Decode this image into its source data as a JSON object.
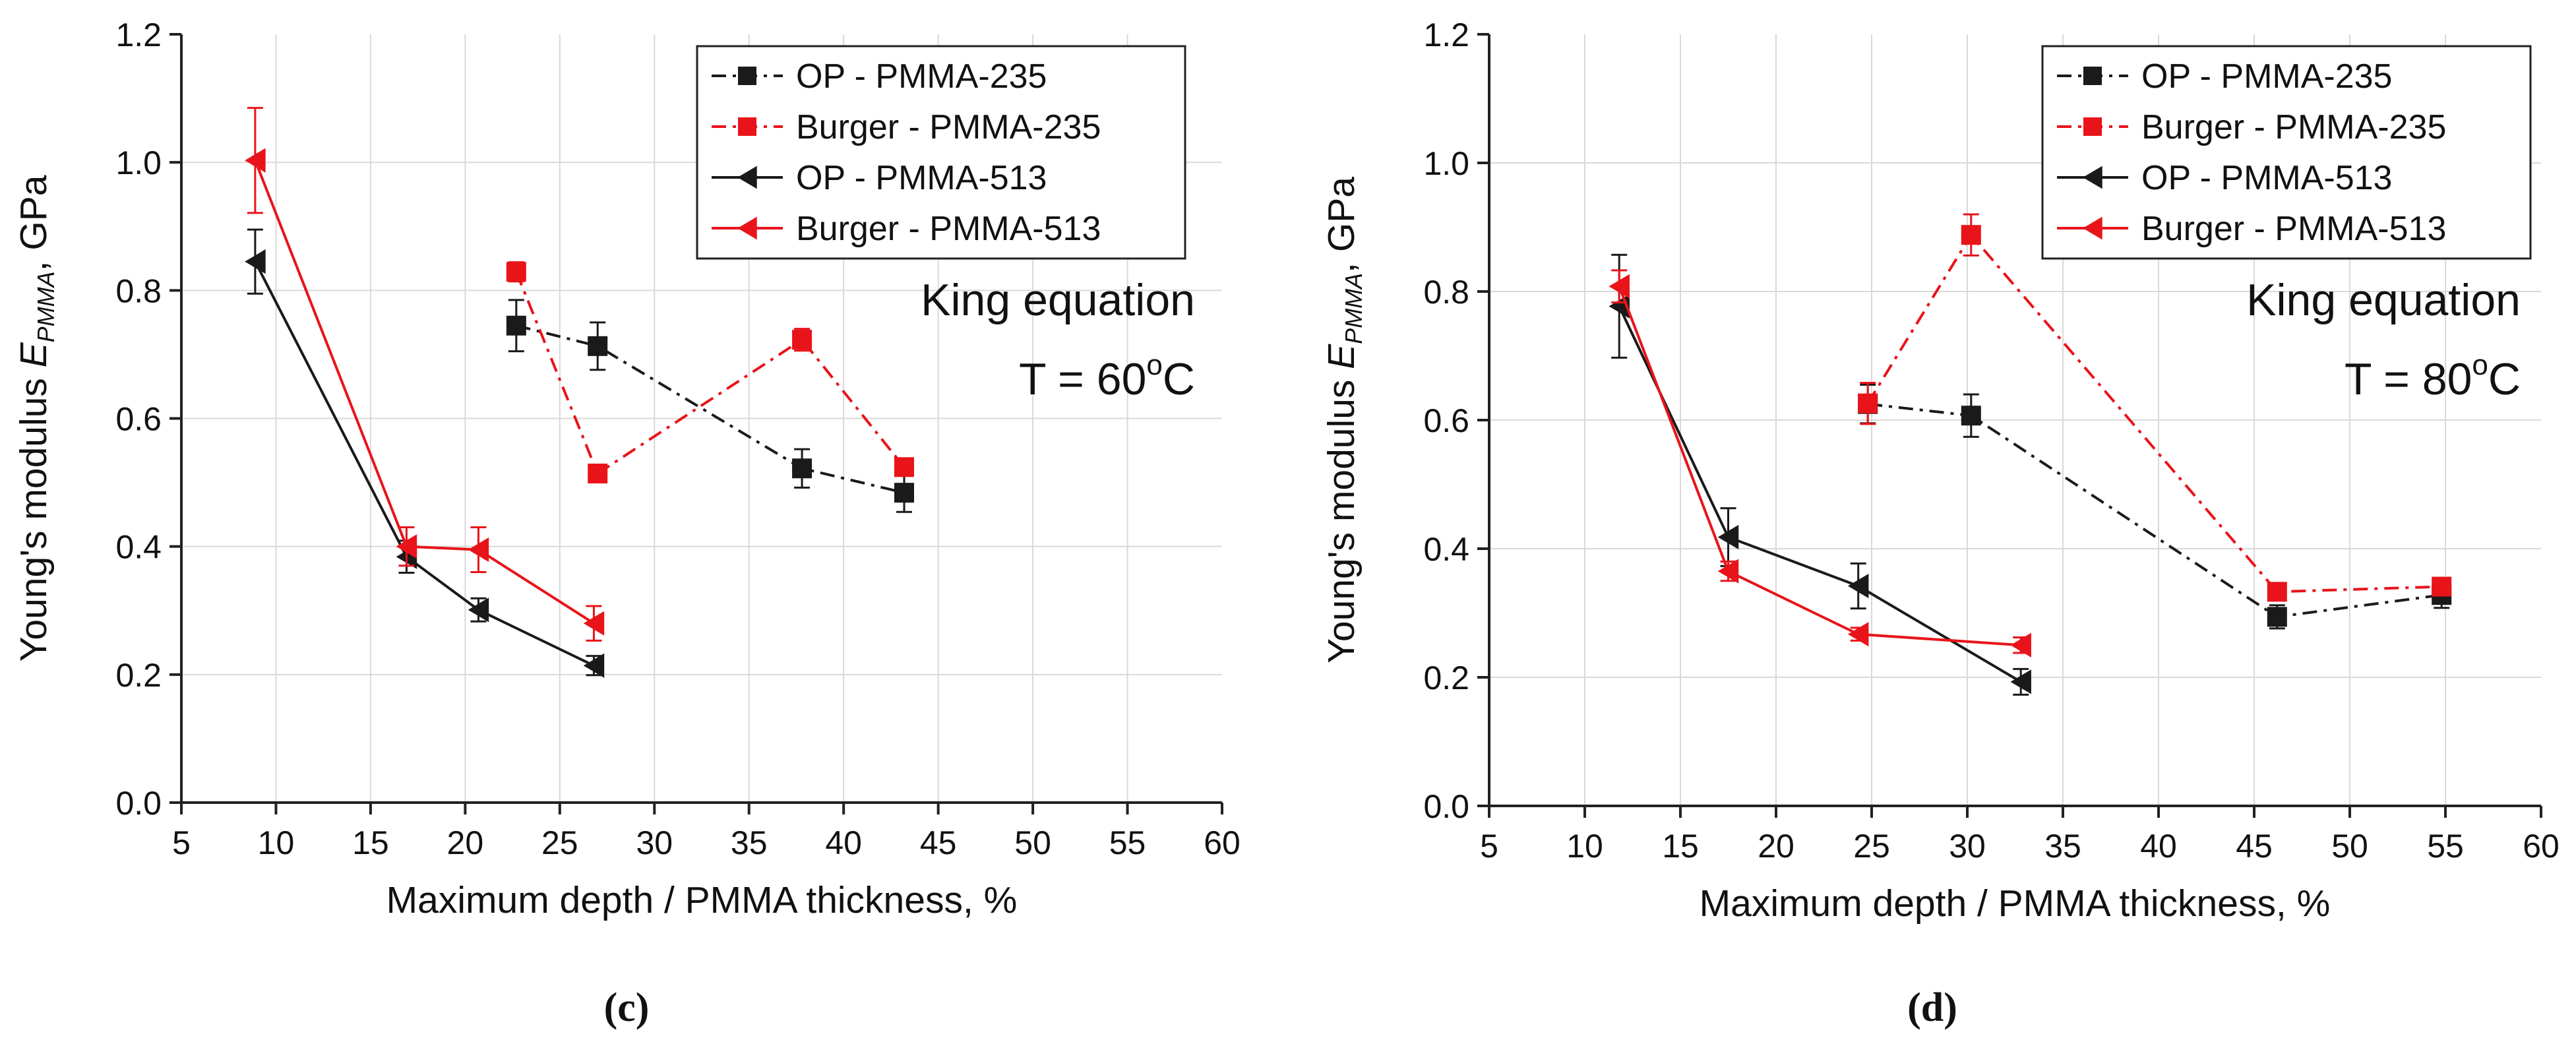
{
  "colors": {
    "black": "#1a1a1a",
    "red": "#e8141a",
    "grid": "#d9d9d9",
    "axis": "#222222"
  },
  "chart_data": [
    {
      "type": "line",
      "panel_label": "(c)",
      "xlabel": "Maximum depth / PMMA thickness, %",
      "ylabel_prefix": "Young's modulus ",
      "ylabel_symbol": "E",
      "ylabel_subscript": "PMMA",
      "ylabel_suffix": ",  GPa",
      "xlim": [
        5,
        60
      ],
      "ylim": [
        0.0,
        1.2
      ],
      "xticks": [
        5,
        10,
        15,
        20,
        25,
        30,
        35,
        40,
        45,
        50,
        55,
        60
      ],
      "yticks": [
        "0.0",
        "0.2",
        "0.4",
        "0.6",
        "0.8",
        "1.0",
        "1.2"
      ],
      "grid": true,
      "legend_position": "top-right",
      "annotations": [
        "King equation",
        "T = 60",
        "o",
        "C"
      ],
      "series": [
        {
          "name": "OP - PMMA-235",
          "color": "black",
          "marker": "square",
          "dash": "dashdot",
          "x": [
            22.7,
            27.0,
            37.8,
            43.2
          ],
          "y": [
            0.745,
            0.713,
            0.522,
            0.484
          ],
          "err": [
            0.04,
            0.037,
            0.03,
            0.03
          ]
        },
        {
          "name": "Burger - PMMA-235",
          "color": "red",
          "marker": "square",
          "dash": "dashdot",
          "x": [
            22.7,
            27.0,
            37.8,
            43.2
          ],
          "y": [
            0.829,
            0.514,
            0.723,
            0.524
          ],
          "err": [
            0.015,
            0.01,
            0.017,
            0.012
          ]
        },
        {
          "name": "OP - PMMA-513",
          "color": "black",
          "marker": "triangle-left",
          "dash": "solid",
          "x": [
            8.9,
            16.9,
            20.7,
            26.8
          ],
          "y": [
            0.845,
            0.384,
            0.301,
            0.214
          ],
          "err": [
            0.05,
            0.025,
            0.018,
            0.015
          ]
        },
        {
          "name": "Burger - PMMA-513",
          "color": "red",
          "marker": "triangle-left",
          "dash": "solid",
          "x": [
            8.9,
            16.9,
            20.7,
            26.8
          ],
          "y": [
            1.003,
            0.4,
            0.395,
            0.28
          ],
          "err": [
            0.082,
            0.03,
            0.035,
            0.027
          ]
        }
      ]
    },
    {
      "type": "line",
      "panel_label": "(d)",
      "xlabel": "Maximum depth / PMMA thickness, %",
      "ylabel_prefix": "Young's modulus ",
      "ylabel_symbol": "E",
      "ylabel_subscript": "PMMA",
      "ylabel_suffix": ",  GPa",
      "xlim": [
        5,
        60
      ],
      "ylim": [
        0.0,
        1.2
      ],
      "xticks": [
        5,
        10,
        15,
        20,
        25,
        30,
        35,
        40,
        45,
        50,
        55,
        60
      ],
      "yticks": [
        "0.0",
        "0.2",
        "0.4",
        "0.6",
        "0.8",
        "1.0",
        "1.2"
      ],
      "grid": true,
      "legend_position": "top-right",
      "annotations": [
        "King equation",
        "T = 80",
        "o",
        "C"
      ],
      "series": [
        {
          "name": "OP - PMMA-235",
          "color": "black",
          "marker": "square",
          "dash": "dashdot",
          "x": [
            24.8,
            30.2,
            46.2,
            54.8
          ],
          "y": [
            0.625,
            0.607,
            0.294,
            0.328
          ],
          "err": [
            0.03,
            0.033,
            0.018,
            0.02
          ]
        },
        {
          "name": "Burger - PMMA-235",
          "color": "red",
          "marker": "square",
          "dash": "dashdot",
          "x": [
            24.8,
            30.2,
            46.2,
            54.8
          ],
          "y": [
            0.626,
            0.888,
            0.333,
            0.341
          ],
          "err": [
            0.032,
            0.032,
            0.01,
            0.01
          ]
        },
        {
          "name": "OP - PMMA-513",
          "color": "black",
          "marker": "triangle-left",
          "dash": "solid",
          "x": [
            11.8,
            17.5,
            24.3,
            32.8
          ],
          "y": [
            0.777,
            0.418,
            0.342,
            0.193
          ],
          "err": [
            0.08,
            0.045,
            0.035,
            0.02
          ]
        },
        {
          "name": "Burger - PMMA-513",
          "color": "red",
          "marker": "triangle-left",
          "dash": "solid",
          "x": [
            11.8,
            17.5,
            24.3,
            32.8
          ],
          "y": [
            0.808,
            0.365,
            0.267,
            0.25
          ],
          "err": [
            0.025,
            0.015,
            0.01,
            0.012
          ]
        }
      ]
    }
  ]
}
